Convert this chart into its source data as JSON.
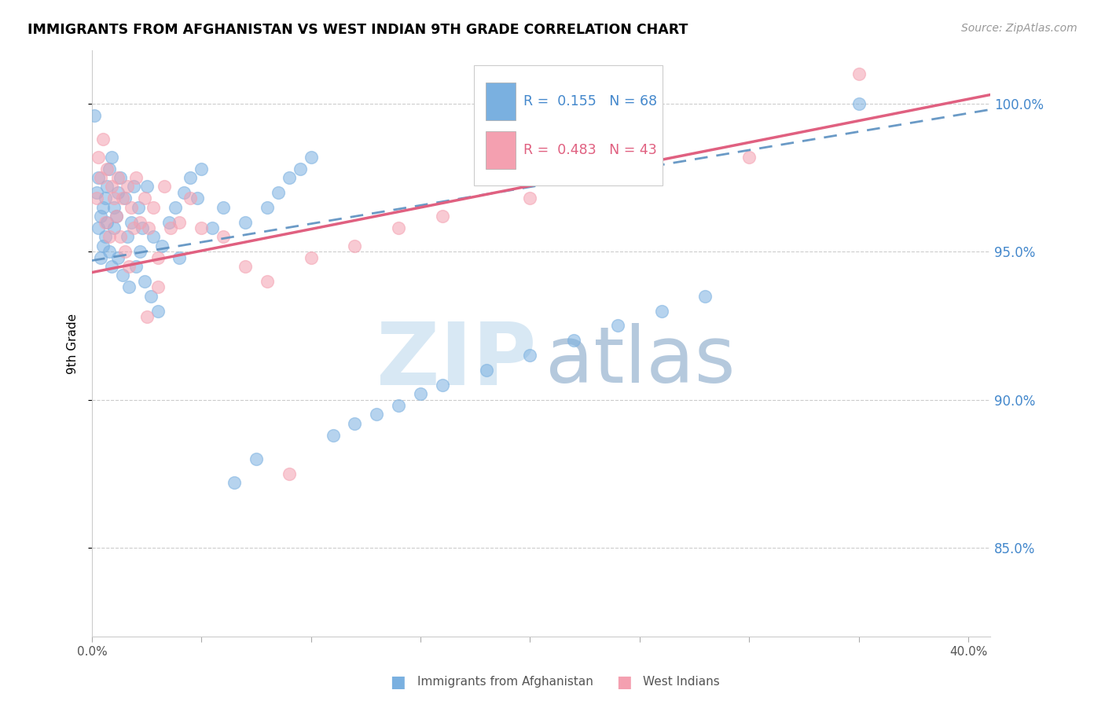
{
  "title": "IMMIGRANTS FROM AFGHANISTAN VS WEST INDIAN 9TH GRADE CORRELATION CHART",
  "source": "Source: ZipAtlas.com",
  "ylabel": "9th Grade",
  "legend_label_blue": "Immigrants from Afghanistan",
  "legend_label_pink": "West Indians",
  "r_blue": 0.155,
  "n_blue": 68,
  "r_pink": 0.483,
  "n_pink": 43,
  "x_min": 0.0,
  "x_max": 0.41,
  "y_min": 0.82,
  "y_max": 1.018,
  "y_ticks": [
    0.85,
    0.9,
    0.95,
    1.0
  ],
  "y_tick_labels": [
    "85.0%",
    "90.0%",
    "95.0%",
    "100.0%"
  ],
  "x_ticks": [
    0.0,
    0.05,
    0.1,
    0.15,
    0.2,
    0.25,
    0.3,
    0.35,
    0.4
  ],
  "x_tick_labels": [
    "0.0%",
    "",
    "",
    "",
    "",
    "",
    "",
    "",
    "40.0%"
  ],
  "color_blue": "#7ab0e0",
  "color_pink": "#f4a0b0",
  "line_color_blue": "#5a8fc0",
  "line_color_pink": "#e06080",
  "blue_line_x0": 0.0,
  "blue_line_y0": 0.947,
  "blue_line_x1": 0.41,
  "blue_line_y1": 0.998,
  "pink_line_x0": 0.0,
  "pink_line_y0": 0.943,
  "pink_line_x1": 0.41,
  "pink_line_y1": 1.003,
  "blue_x": [
    0.001,
    0.002,
    0.003,
    0.003,
    0.004,
    0.004,
    0.005,
    0.005,
    0.006,
    0.006,
    0.007,
    0.007,
    0.008,
    0.008,
    0.009,
    0.009,
    0.01,
    0.01,
    0.011,
    0.012,
    0.012,
    0.013,
    0.014,
    0.015,
    0.016,
    0.017,
    0.018,
    0.019,
    0.02,
    0.021,
    0.022,
    0.023,
    0.024,
    0.025,
    0.027,
    0.028,
    0.03,
    0.032,
    0.035,
    0.038,
    0.04,
    0.042,
    0.045,
    0.048,
    0.05,
    0.055,
    0.06,
    0.065,
    0.07,
    0.075,
    0.08,
    0.085,
    0.09,
    0.095,
    0.1,
    0.11,
    0.12,
    0.13,
    0.14,
    0.15,
    0.16,
    0.18,
    0.2,
    0.22,
    0.24,
    0.26,
    0.28,
    0.35
  ],
  "blue_y": [
    0.996,
    0.97,
    0.958,
    0.975,
    0.962,
    0.948,
    0.965,
    0.952,
    0.968,
    0.955,
    0.972,
    0.96,
    0.978,
    0.95,
    0.982,
    0.945,
    0.965,
    0.958,
    0.962,
    0.97,
    0.948,
    0.975,
    0.942,
    0.968,
    0.955,
    0.938,
    0.96,
    0.972,
    0.945,
    0.965,
    0.95,
    0.958,
    0.94,
    0.972,
    0.935,
    0.955,
    0.93,
    0.952,
    0.96,
    0.965,
    0.948,
    0.97,
    0.975,
    0.968,
    0.978,
    0.958,
    0.965,
    0.872,
    0.96,
    0.88,
    0.965,
    0.97,
    0.975,
    0.978,
    0.982,
    0.888,
    0.892,
    0.895,
    0.898,
    0.902,
    0.905,
    0.91,
    0.915,
    0.92,
    0.925,
    0.93,
    0.935,
    1.0
  ],
  "pink_x": [
    0.002,
    0.003,
    0.004,
    0.005,
    0.006,
    0.007,
    0.008,
    0.009,
    0.01,
    0.011,
    0.012,
    0.013,
    0.014,
    0.015,
    0.016,
    0.017,
    0.018,
    0.019,
    0.02,
    0.022,
    0.024,
    0.026,
    0.028,
    0.03,
    0.033,
    0.036,
    0.04,
    0.045,
    0.05,
    0.06,
    0.07,
    0.08,
    0.09,
    0.1,
    0.12,
    0.14,
    0.16,
    0.2,
    0.25,
    0.3,
    0.35,
    0.03,
    0.025
  ],
  "pink_y": [
    0.968,
    0.982,
    0.975,
    0.988,
    0.96,
    0.978,
    0.955,
    0.972,
    0.968,
    0.962,
    0.975,
    0.955,
    0.968,
    0.95,
    0.972,
    0.945,
    0.965,
    0.958,
    0.975,
    0.96,
    0.968,
    0.958,
    0.965,
    0.948,
    0.972,
    0.958,
    0.96,
    0.968,
    0.958,
    0.955,
    0.945,
    0.94,
    0.875,
    0.948,
    0.952,
    0.958,
    0.962,
    0.968,
    0.975,
    0.982,
    1.01,
    0.938,
    0.928
  ]
}
